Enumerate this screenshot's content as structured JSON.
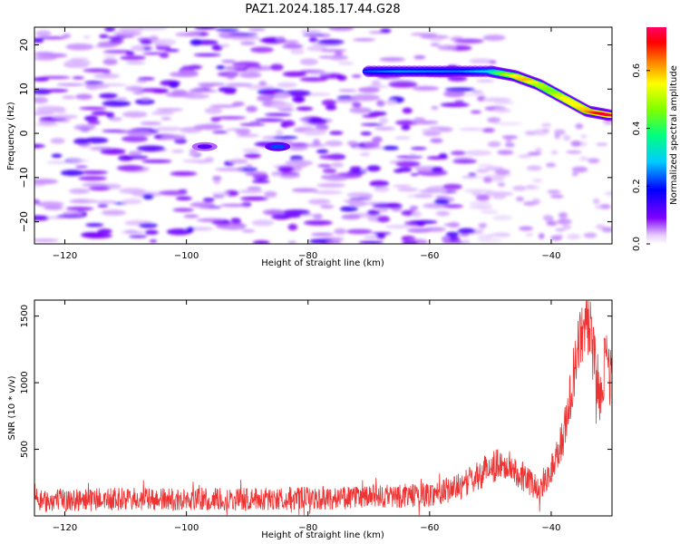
{
  "figure": {
    "title": "PAZ1.2024.185.17.44.G28"
  },
  "chart_data": [
    {
      "type": "heatmap",
      "title": "PAZ1.2024.185.17.44.G28",
      "xlabel": "Height of straight line (km)",
      "ylabel": "Frequency (Hz)",
      "xlim": [
        -125,
        -30
      ],
      "ylim": [
        -25,
        24
      ],
      "xticks": [
        -120,
        -100,
        -80,
        -60,
        -40
      ],
      "yticks": [
        20,
        10,
        0,
        -10,
        -20
      ],
      "colorbar": {
        "label": "Normalized spectral amplitude",
        "range": [
          0,
          0.75
        ],
        "ticks": [
          0.0,
          0.2,
          0.4,
          0.6
        ],
        "colormap": "gist_rainbow_r"
      },
      "ridge": {
        "description_values": "dominant frequency ridge (km, Hz, amplitude)",
        "x": [
          -70,
          -65,
          -60,
          -55,
          -50,
          -48,
          -46,
          -44,
          -42,
          -40,
          -38,
          -36,
          -34,
          -32,
          -30
        ],
        "y": [
          14,
          14,
          14,
          14,
          14,
          13.5,
          13,
          12,
          11,
          9.5,
          8,
          6.5,
          5,
          4.5,
          4
        ],
        "amplitude": [
          0.22,
          0.26,
          0.25,
          0.24,
          0.3,
          0.45,
          0.55,
          0.6,
          0.5,
          0.45,
          0.55,
          0.55,
          0.6,
          0.7,
          0.75
        ]
      },
      "blobs": {
        "x": [
          -85,
          -97
        ],
        "y": [
          -3,
          -3
        ],
        "amplitude": [
          0.22,
          0.12
        ]
      },
      "grid": false
    },
    {
      "type": "line",
      "xlabel": "Height of straight line (km)",
      "ylabel": "SNR (10 * v/v)",
      "xlim": [
        -125,
        -30
      ],
      "ylim": [
        0,
        1620
      ],
      "xticks": [
        -120,
        -100,
        -80,
        -60,
        -40
      ],
      "yticks": [
        500,
        1000,
        1500
      ],
      "color": "#ee3333",
      "envelope": {
        "x": [
          -125,
          -120,
          -110,
          -100,
          -90,
          -80,
          -70,
          -60,
          -55,
          -52,
          -50,
          -48,
          -46,
          -44,
          -42,
          -40,
          -38,
          -36,
          -35,
          -34,
          -33,
          -32,
          -31,
          -30
        ],
        "y": [
          110,
          120,
          125,
          120,
          125,
          130,
          140,
          160,
          220,
          300,
          370,
          390,
          350,
          270,
          200,
          350,
          600,
          1100,
          1400,
          1500,
          1200,
          900,
          1200,
          1000
        ]
      },
      "noise_amplitude": 70,
      "grid": false
    }
  ]
}
